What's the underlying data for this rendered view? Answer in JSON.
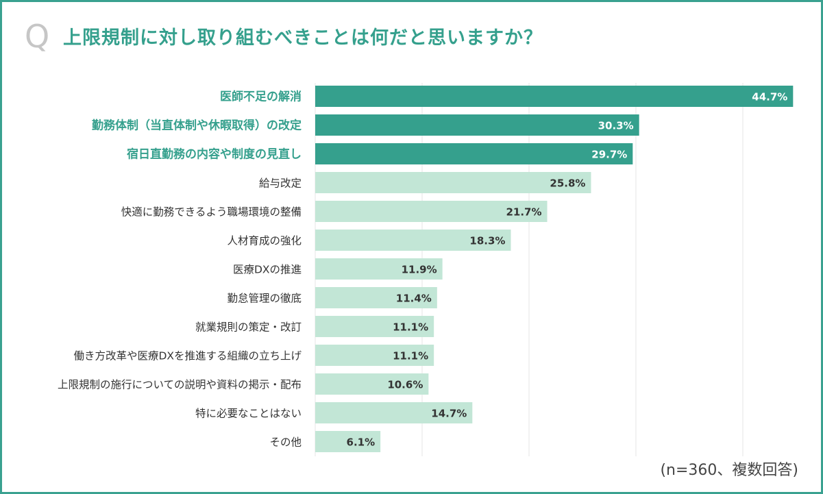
{
  "title": "上限規制に対し取り組むべきことは何だと思いますか？",
  "q_marker": "Q",
  "note": "(n=360、複数回答)",
  "colors": {
    "frame": "#3aa190",
    "highlight_bar": "#35a08d",
    "normal_bar": "#c2e6d6",
    "highlight_label": "#35a08d",
    "normal_label": "#333333",
    "grid": "#e4e4e4"
  },
  "chart_data": {
    "type": "bar",
    "orientation": "horizontal",
    "title": "上限規制に対し取り組むべきことは何だと思いますか？",
    "categories": [
      "医師不足の解消",
      "勤務体制（当直体制や休暇取得）の改定",
      "宿日直勤務の内容や制度の見直し",
      "給与改定",
      "快適に勤務できるよう職場環境の整備",
      "人材育成の強化",
      "医療DXの推進",
      "勤怠管理の徹底",
      "就業規則の策定・改訂",
      "働き方改革や医療DXを推進する組織の立ち上げ",
      "上限規制の施行についての説明や資料の掲示・配布",
      "特に必要なことはない",
      "その他"
    ],
    "values": [
      44.7,
      30.3,
      29.7,
      25.8,
      21.7,
      18.3,
      11.9,
      11.4,
      11.1,
      11.1,
      10.6,
      14.7,
      6.1
    ],
    "value_labels": [
      "44.7%",
      "30.3%",
      "29.7%",
      "25.8%",
      "21.7%",
      "18.3%",
      "11.9%",
      "11.4%",
      "11.1%",
      "11.1%",
      "10.6%",
      "14.7%",
      "6.1%"
    ],
    "highlighted": [
      true,
      true,
      true,
      false,
      false,
      false,
      false,
      false,
      false,
      false,
      false,
      false,
      false
    ],
    "xlim": [
      0,
      45
    ],
    "gridlines_at": [
      0,
      10,
      20,
      30,
      40
    ],
    "grid": true,
    "legend": "none"
  }
}
